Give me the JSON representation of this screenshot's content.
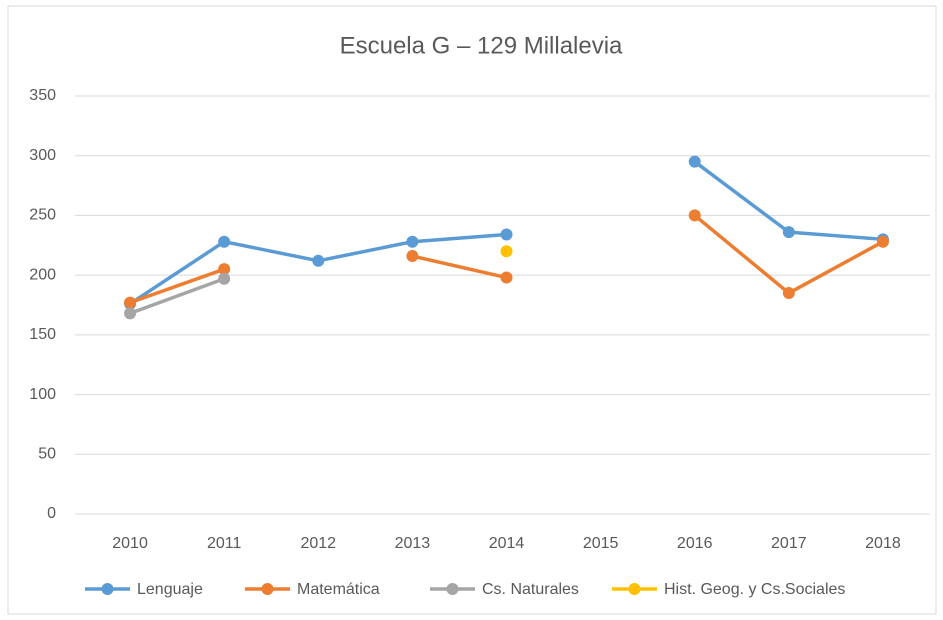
{
  "chart_data": {
    "type": "line",
    "title": "Escuela G – 129 Millalevia",
    "categories": [
      "2010",
      "2011",
      "2012",
      "2013",
      "2014",
      "2015",
      "2016",
      "2017",
      "2018"
    ],
    "series": [
      {
        "name": "Lenguaje",
        "color": "#5b9bd5",
        "values": [
          176,
          228,
          212,
          228,
          234,
          null,
          295,
          236,
          230
        ]
      },
      {
        "name": "Matemática",
        "color": "#ed7d31",
        "values": [
          177,
          205,
          null,
          216,
          198,
          null,
          250,
          185,
          228
        ]
      },
      {
        "name": "Cs. Naturales",
        "color": "#a5a5a5",
        "values": [
          168,
          197,
          null,
          null,
          null,
          null,
          null,
          null,
          null
        ]
      },
      {
        "name": "Hist. Geog. y Cs.Sociales",
        "color": "#ffc000",
        "values": [
          null,
          null,
          null,
          null,
          220,
          null,
          null,
          null,
          null
        ]
      }
    ],
    "ylim": [
      0,
      350
    ],
    "yticks": [
      0,
      50,
      100,
      150,
      200,
      250,
      300,
      350
    ],
    "grid": true,
    "legend": "bottom"
  }
}
